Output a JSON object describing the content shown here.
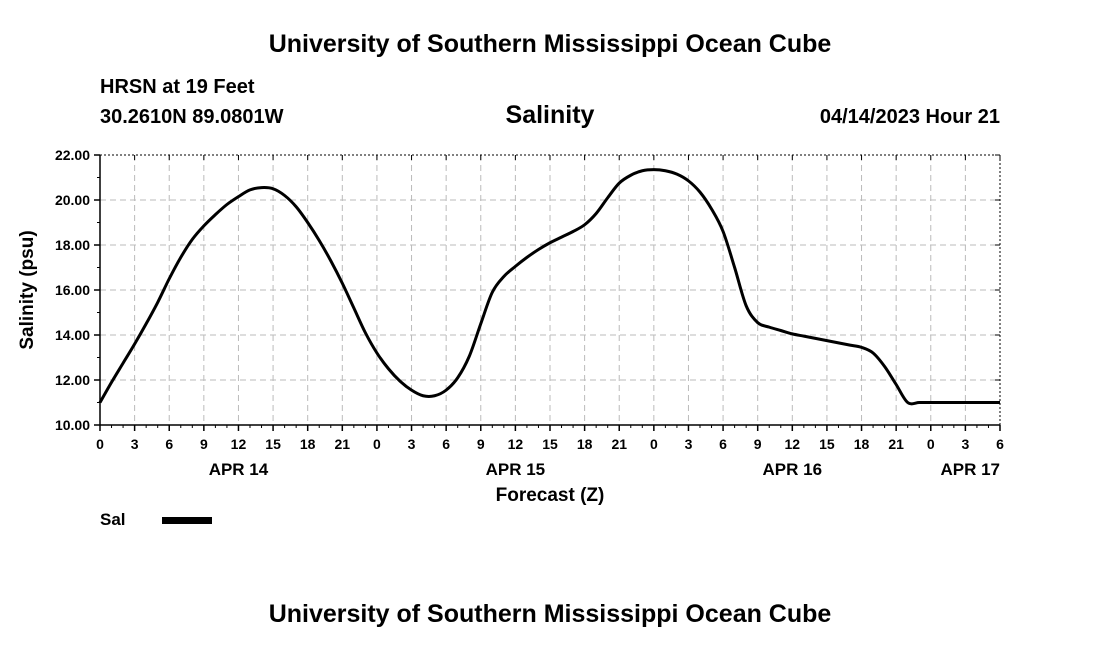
{
  "header": {
    "title": "University of Southern Mississippi Ocean Cube",
    "station": "HRSN at 19 Feet",
    "coords": "30.2610N  89.0801W",
    "datetime": "04/14/2023 Hour 21"
  },
  "footer": {
    "title": "University of Southern Mississippi Ocean Cube"
  },
  "legend": {
    "label": "Sal",
    "color": "#000000"
  },
  "chart_data": {
    "type": "line",
    "title": "Salinity",
    "xlabel": "Forecast (Z)",
    "ylabel": "Salinity (psu)",
    "ylim": [
      10,
      22
    ],
    "yticks": [
      "10.00",
      "12.00",
      "14.00",
      "16.00",
      "18.00",
      "20.00",
      "22.00"
    ],
    "xlim_hours": [
      0,
      78
    ],
    "xtick_labels": [
      "0",
      "3",
      "6",
      "9",
      "12",
      "15",
      "18",
      "21",
      "0",
      "3",
      "6",
      "9",
      "12",
      "15",
      "18",
      "21",
      "0",
      "3",
      "6",
      "9",
      "12",
      "15",
      "18",
      "21",
      "0",
      "3",
      "6"
    ],
    "date_labels": [
      {
        "label": "APR 14",
        "hour": 12
      },
      {
        "label": "APR 15",
        "hour": 36
      },
      {
        "label": "APR 16",
        "hour": 60
      },
      {
        "label": "APR 17",
        "hour": 78
      }
    ],
    "grid": true,
    "legend_position": "bottom-left",
    "series": [
      {
        "name": "Sal",
        "color": "#000000",
        "x_hours": [
          0,
          1,
          2,
          3,
          4,
          5,
          6,
          7,
          8,
          9,
          10,
          11,
          12,
          13,
          14,
          15,
          16,
          17,
          18,
          19,
          20,
          21,
          22,
          23,
          24,
          25,
          26,
          27,
          28,
          29,
          30,
          31,
          32,
          33,
          34,
          35,
          36,
          37,
          38,
          39,
          40,
          41,
          42,
          43,
          44,
          45,
          46,
          47,
          48,
          49,
          50,
          51,
          52,
          53,
          54,
          55,
          56,
          57,
          58,
          59,
          60,
          61,
          62,
          63,
          64,
          65,
          66,
          67,
          68,
          69,
          70,
          71,
          72,
          73,
          74,
          75,
          76,
          77,
          78
        ],
        "values": [
          11.0,
          11.9,
          12.75,
          13.6,
          14.5,
          15.45,
          16.5,
          17.45,
          18.25,
          18.85,
          19.35,
          19.8,
          20.15,
          20.45,
          20.55,
          20.5,
          20.2,
          19.7,
          19.0,
          18.2,
          17.3,
          16.3,
          15.2,
          14.1,
          13.2,
          12.5,
          11.95,
          11.55,
          11.3,
          11.3,
          11.55,
          12.1,
          13.05,
          14.5,
          15.9,
          16.6,
          17.05,
          17.45,
          17.8,
          18.1,
          18.35,
          18.6,
          18.9,
          19.4,
          20.1,
          20.75,
          21.1,
          21.3,
          21.35,
          21.3,
          21.15,
          20.85,
          20.35,
          19.6,
          18.6,
          17.0,
          15.3,
          14.55,
          14.35,
          14.2,
          14.05,
          13.95,
          13.85,
          13.75,
          13.65,
          13.55,
          13.45,
          13.2,
          12.6,
          11.8,
          11.0,
          11.0,
          11.0,
          11.0,
          11.0,
          11.0,
          11.0,
          11.0,
          11.0
        ]
      }
    ]
  }
}
